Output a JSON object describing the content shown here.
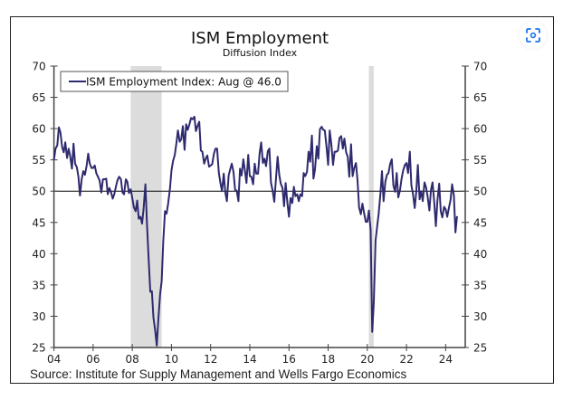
{
  "chart_data": {
    "type": "line",
    "title": "ISM Employment",
    "subtitle": "Diffusion Index",
    "xlabel": "",
    "ylabel": "",
    "source": "Source: Institute for Supply Management and Wells Fargo Economics",
    "xlim": [
      2004,
      2025
    ],
    "ylim": [
      25,
      70
    ],
    "y_ticks": [
      25,
      30,
      35,
      40,
      45,
      50,
      55,
      60,
      65,
      70
    ],
    "y_tick_labels": [
      "25",
      "30",
      "35",
      "40",
      "45",
      "50",
      "55",
      "60",
      "65",
      "70"
    ],
    "x_ticks": [
      2004,
      2006,
      2008,
      2010,
      2012,
      2014,
      2016,
      2018,
      2020,
      2022,
      2024
    ],
    "x_tick_labels": [
      "04",
      "06",
      "08",
      "10",
      "12",
      "14",
      "16",
      "18",
      "20",
      "22",
      "24"
    ],
    "reference_line": 50,
    "grid": false,
    "legend": {
      "position": "top-left",
      "entries": [
        "ISM Employment Index: Aug @ 46.0"
      ]
    },
    "recessions": [
      {
        "start": 2007.92,
        "end": 2009.5
      },
      {
        "start": 2020.08,
        "end": 2020.33
      }
    ],
    "colors": {
      "line": "#2e2a6e",
      "recession": "#dcdcdc",
      "axis": "#444444"
    },
    "series": [
      {
        "name": "ISM Employment Index",
        "x": [
          2004.0,
          2004.08,
          2004.17,
          2004.25,
          2004.33,
          2004.42,
          2004.5,
          2004.58,
          2004.67,
          2004.75,
          2004.83,
          2004.92,
          2005.0,
          2005.08,
          2005.17,
          2005.25,
          2005.33,
          2005.42,
          2005.5,
          2005.58,
          2005.67,
          2005.75,
          2005.83,
          2005.92,
          2006.0,
          2006.08,
          2006.17,
          2006.25,
          2006.33,
          2006.42,
          2006.5,
          2006.58,
          2006.67,
          2006.75,
          2006.83,
          2006.92,
          2007.0,
          2007.08,
          2007.17,
          2007.25,
          2007.33,
          2007.42,
          2007.5,
          2007.58,
          2007.67,
          2007.75,
          2007.83,
          2007.92,
          2008.0,
          2008.08,
          2008.17,
          2008.25,
          2008.33,
          2008.42,
          2008.5,
          2008.58,
          2008.67,
          2008.75,
          2008.83,
          2008.92,
          2009.0,
          2009.08,
          2009.17,
          2009.25,
          2009.33,
          2009.42,
          2009.5,
          2009.58,
          2009.67,
          2009.75,
          2009.83,
          2009.92,
          2010.0,
          2010.08,
          2010.17,
          2010.25,
          2010.33,
          2010.42,
          2010.5,
          2010.58,
          2010.67,
          2010.75,
          2010.83,
          2010.92,
          2011.0,
          2011.08,
          2011.17,
          2011.25,
          2011.33,
          2011.42,
          2011.5,
          2011.58,
          2011.67,
          2011.75,
          2011.83,
          2011.92,
          2012.0,
          2012.08,
          2012.17,
          2012.25,
          2012.33,
          2012.42,
          2012.5,
          2012.58,
          2012.67,
          2012.75,
          2012.83,
          2012.92,
          2013.0,
          2013.08,
          2013.17,
          2013.25,
          2013.33,
          2013.42,
          2013.5,
          2013.58,
          2013.67,
          2013.75,
          2013.83,
          2013.92,
          2014.0,
          2014.08,
          2014.17,
          2014.25,
          2014.33,
          2014.42,
          2014.5,
          2014.58,
          2014.67,
          2014.75,
          2014.83,
          2014.92,
          2015.0,
          2015.08,
          2015.17,
          2015.25,
          2015.33,
          2015.42,
          2015.5,
          2015.58,
          2015.67,
          2015.75,
          2015.83,
          2015.92,
          2016.0,
          2016.08,
          2016.17,
          2016.25,
          2016.33,
          2016.42,
          2016.5,
          2016.58,
          2016.67,
          2016.75,
          2016.83,
          2016.92,
          2017.0,
          2017.08,
          2017.17,
          2017.25,
          2017.33,
          2017.42,
          2017.5,
          2017.58,
          2017.67,
          2017.75,
          2017.83,
          2017.92,
          2018.0,
          2018.08,
          2018.17,
          2018.25,
          2018.33,
          2018.42,
          2018.5,
          2018.58,
          2018.67,
          2018.75,
          2018.83,
          2018.92,
          2019.0,
          2019.08,
          2019.17,
          2019.25,
          2019.33,
          2019.42,
          2019.5,
          2019.58,
          2019.67,
          2019.75,
          2019.83,
          2019.92,
          2020.0,
          2020.08,
          2020.17,
          2020.25,
          2020.33,
          2020.42,
          2020.5,
          2020.58,
          2020.67,
          2020.75,
          2020.83,
          2020.92,
          2021.0,
          2021.08,
          2021.17,
          2021.25,
          2021.33,
          2021.42,
          2021.5,
          2021.58,
          2021.67,
          2021.75,
          2021.83,
          2021.92,
          2022.0,
          2022.08,
          2022.17,
          2022.25,
          2022.33,
          2022.42,
          2022.5,
          2022.58,
          2022.67,
          2022.75,
          2022.83,
          2022.92,
          2023.0,
          2023.08,
          2023.17,
          2023.25,
          2023.33,
          2023.42,
          2023.5,
          2023.58,
          2023.67,
          2023.75,
          2023.83,
          2023.92,
          2024.0,
          2024.08,
          2024.17,
          2024.25,
          2024.33,
          2024.42,
          2024.5,
          2024.58
        ],
        "values": [
          55.0,
          56.8,
          57.3,
          60.2,
          59.4,
          57.0,
          56.2,
          57.8,
          55.3,
          56.8,
          55.6,
          53.6,
          57.6,
          54.4,
          53.8,
          52.3,
          49.3,
          52.0,
          53.2,
          52.6,
          54.1,
          56.0,
          54.4,
          53.7,
          53.7,
          54.1,
          52.8,
          52.3,
          51.7,
          49.8,
          51.9,
          51.9,
          52.0,
          49.5,
          50.5,
          49.8,
          48.8,
          49.5,
          50.8,
          51.8,
          52.3,
          51.9,
          49.8,
          49.5,
          51.9,
          51.5,
          49.7,
          50.3,
          48.9,
          47.4,
          46.8,
          48.5,
          45.6,
          45.9,
          44.8,
          47.3,
          51.1,
          44.8,
          39.5,
          33.9,
          34.0,
          29.8,
          27.7,
          25.3,
          29.5,
          33.5,
          35.6,
          41.9,
          46.8,
          46.4,
          48.0,
          50.3,
          53.3,
          54.8,
          55.8,
          57.6,
          59.7,
          57.9,
          58.3,
          60.4,
          56.6,
          60.7,
          59.8,
          60.7,
          61.7,
          61.5,
          61.9,
          59.6,
          60.4,
          61.1,
          56.5,
          56.3,
          54.4,
          55.2,
          55.7,
          53.9,
          54.1,
          54.3,
          56.0,
          56.8,
          56.8,
          52.9,
          51.3,
          50.0,
          52.8,
          49.8,
          48.4,
          52.5,
          53.5,
          54.4,
          53.0,
          50.2,
          50.1,
          48.4,
          53.6,
          52.5,
          55.1,
          53.3,
          51.3,
          55.8,
          52.4,
          52.3,
          51.1,
          54.4,
          52.8,
          52.8,
          56.0,
          57.8,
          54.5,
          55.2,
          54.0,
          56.4,
          56.8,
          51.4,
          50.0,
          48.3,
          51.7,
          55.5,
          52.7,
          51.2,
          50.5,
          47.6,
          51.3,
          48.1,
          45.9,
          48.9,
          48.1,
          50.7,
          49.2,
          49.5,
          48.4,
          49.5,
          49.2,
          52.9,
          52.4,
          53.1,
          56.3,
          54.7,
          58.9,
          52.0,
          53.5,
          57.2,
          55.2,
          59.9,
          60.3,
          59.8,
          59.7,
          57.0,
          54.2,
          59.7,
          57.3,
          54.2,
          56.3,
          56.3,
          56.5,
          58.5,
          58.8,
          56.8,
          58.4,
          56.2,
          55.5,
          52.3,
          57.5,
          52.4,
          53.7,
          54.5,
          51.7,
          47.4,
          46.3,
          48.0,
          46.6,
          45.1,
          45.1,
          46.9,
          43.8,
          27.5,
          32.1,
          42.1,
          44.3,
          46.4,
          49.6,
          53.2,
          48.4,
          51.5,
          52.6,
          52.9,
          54.4,
          55.1,
          50.9,
          49.9,
          52.9,
          49.0,
          50.2,
          52.0,
          53.3,
          54.2,
          54.5,
          52.9,
          56.3,
          50.9,
          49.6,
          47.3,
          49.9,
          54.2,
          48.7,
          50.0,
          48.4,
          51.4,
          50.6,
          49.1,
          46.9,
          50.2,
          51.4,
          48.1,
          44.4,
          48.5,
          51.2,
          46.8,
          45.8,
          47.5,
          47.1,
          45.9,
          47.4,
          48.6,
          51.1,
          49.3,
          43.4,
          46.0
        ]
      }
    ]
  },
  "ui": {
    "lens_button_icon": "visual-search-icon"
  }
}
